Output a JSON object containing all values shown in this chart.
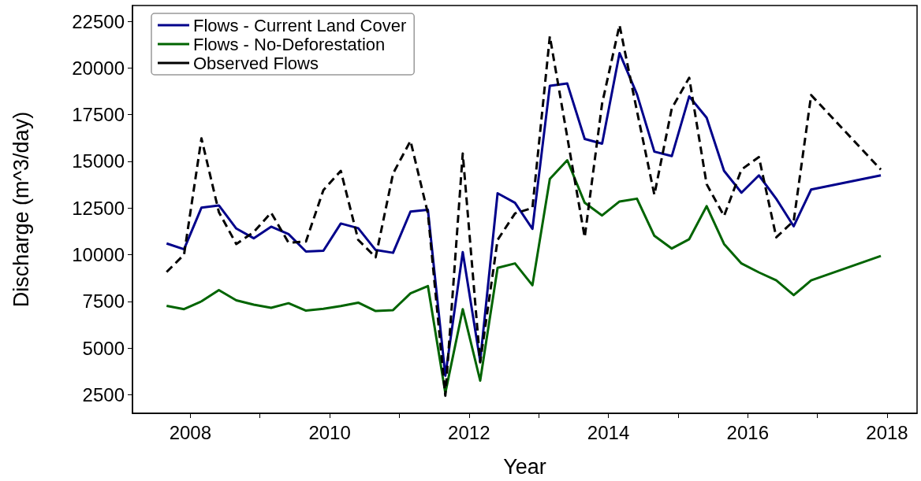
{
  "chart_data": {
    "type": "line",
    "xlabel": "Year",
    "ylabel": "Discharge (m^3/day)",
    "x": [
      2007.66,
      2007.91,
      2008.16,
      2008.41,
      2008.66,
      2008.91,
      2009.16,
      2009.41,
      2009.66,
      2009.91,
      2010.16,
      2010.41,
      2010.66,
      2010.91,
      2011.16,
      2011.41,
      2011.66,
      2011.91,
      2012.16,
      2012.41,
      2012.66,
      2012.91,
      2013.16,
      2013.41,
      2013.66,
      2013.91,
      2014.16,
      2014.41,
      2014.66,
      2014.91,
      2015.16,
      2015.41,
      2015.66,
      2015.91,
      2016.16,
      2016.41,
      2016.66,
      2016.91,
      2017.91
    ],
    "series": [
      {
        "name": "Flows - Current Land Cover",
        "color": "#00008b",
        "line_style": "solid",
        "values": [
          10600,
          10290,
          12520,
          12640,
          11400,
          10880,
          11500,
          11100,
          10170,
          10210,
          11670,
          11420,
          10250,
          10100,
          12310,
          12400,
          3510,
          10140,
          4300,
          13290,
          12780,
          11380,
          19050,
          19170,
          16200,
          15950,
          20800,
          18600,
          15520,
          15280,
          18480,
          17340,
          14490,
          13320,
          14250,
          12990,
          11520,
          13490,
          14250
        ]
      },
      {
        "name": "Flows - No-Deforestation",
        "color": "#006400",
        "line_style": "solid",
        "values": [
          7260,
          7080,
          7500,
          8100,
          7550,
          7320,
          7150,
          7400,
          7000,
          7100,
          7250,
          7430,
          6980,
          7030,
          7930,
          8320,
          2590,
          7080,
          3250,
          9290,
          9530,
          8360,
          14060,
          15060,
          12780,
          12100,
          12850,
          13000,
          11010,
          10330,
          10830,
          12600,
          10570,
          9530,
          9050,
          8620,
          7830,
          8620,
          9930
        ]
      },
      {
        "name": "Observed Flows",
        "color": "#000000",
        "line_style": "dashed",
        "values": [
          9070,
          10000,
          16230,
          12280,
          10570,
          11210,
          12250,
          10640,
          10710,
          13460,
          14490,
          10790,
          9860,
          14350,
          16100,
          12210,
          2440,
          15420,
          4230,
          10790,
          12210,
          12500,
          21700,
          16300,
          10930,
          18100,
          22300,
          17700,
          13210,
          17840,
          19480,
          13780,
          12070,
          14560,
          15230,
          10930,
          11810,
          18550,
          14560
        ]
      }
    ],
    "xlim": [
      2007.17,
      2018.43
    ],
    "xticks": [
      2008,
      {
        "value": 2009,
        "label": null
      },
      2010,
      {
        "value": 2011,
        "label": null
      },
      2012,
      {
        "value": 2013,
        "label": null
      },
      2014,
      {
        "value": 2015,
        "label": null
      },
      2016,
      {
        "value": 2017,
        "label": null
      },
      2018
    ],
    "ylim": [
      1500,
      23350
    ],
    "yticks": [
      2500,
      5000,
      7500,
      10000,
      12500,
      15000,
      17500,
      20000,
      22500
    ],
    "grid": false,
    "legend": "top left",
    "marker": "none"
  }
}
